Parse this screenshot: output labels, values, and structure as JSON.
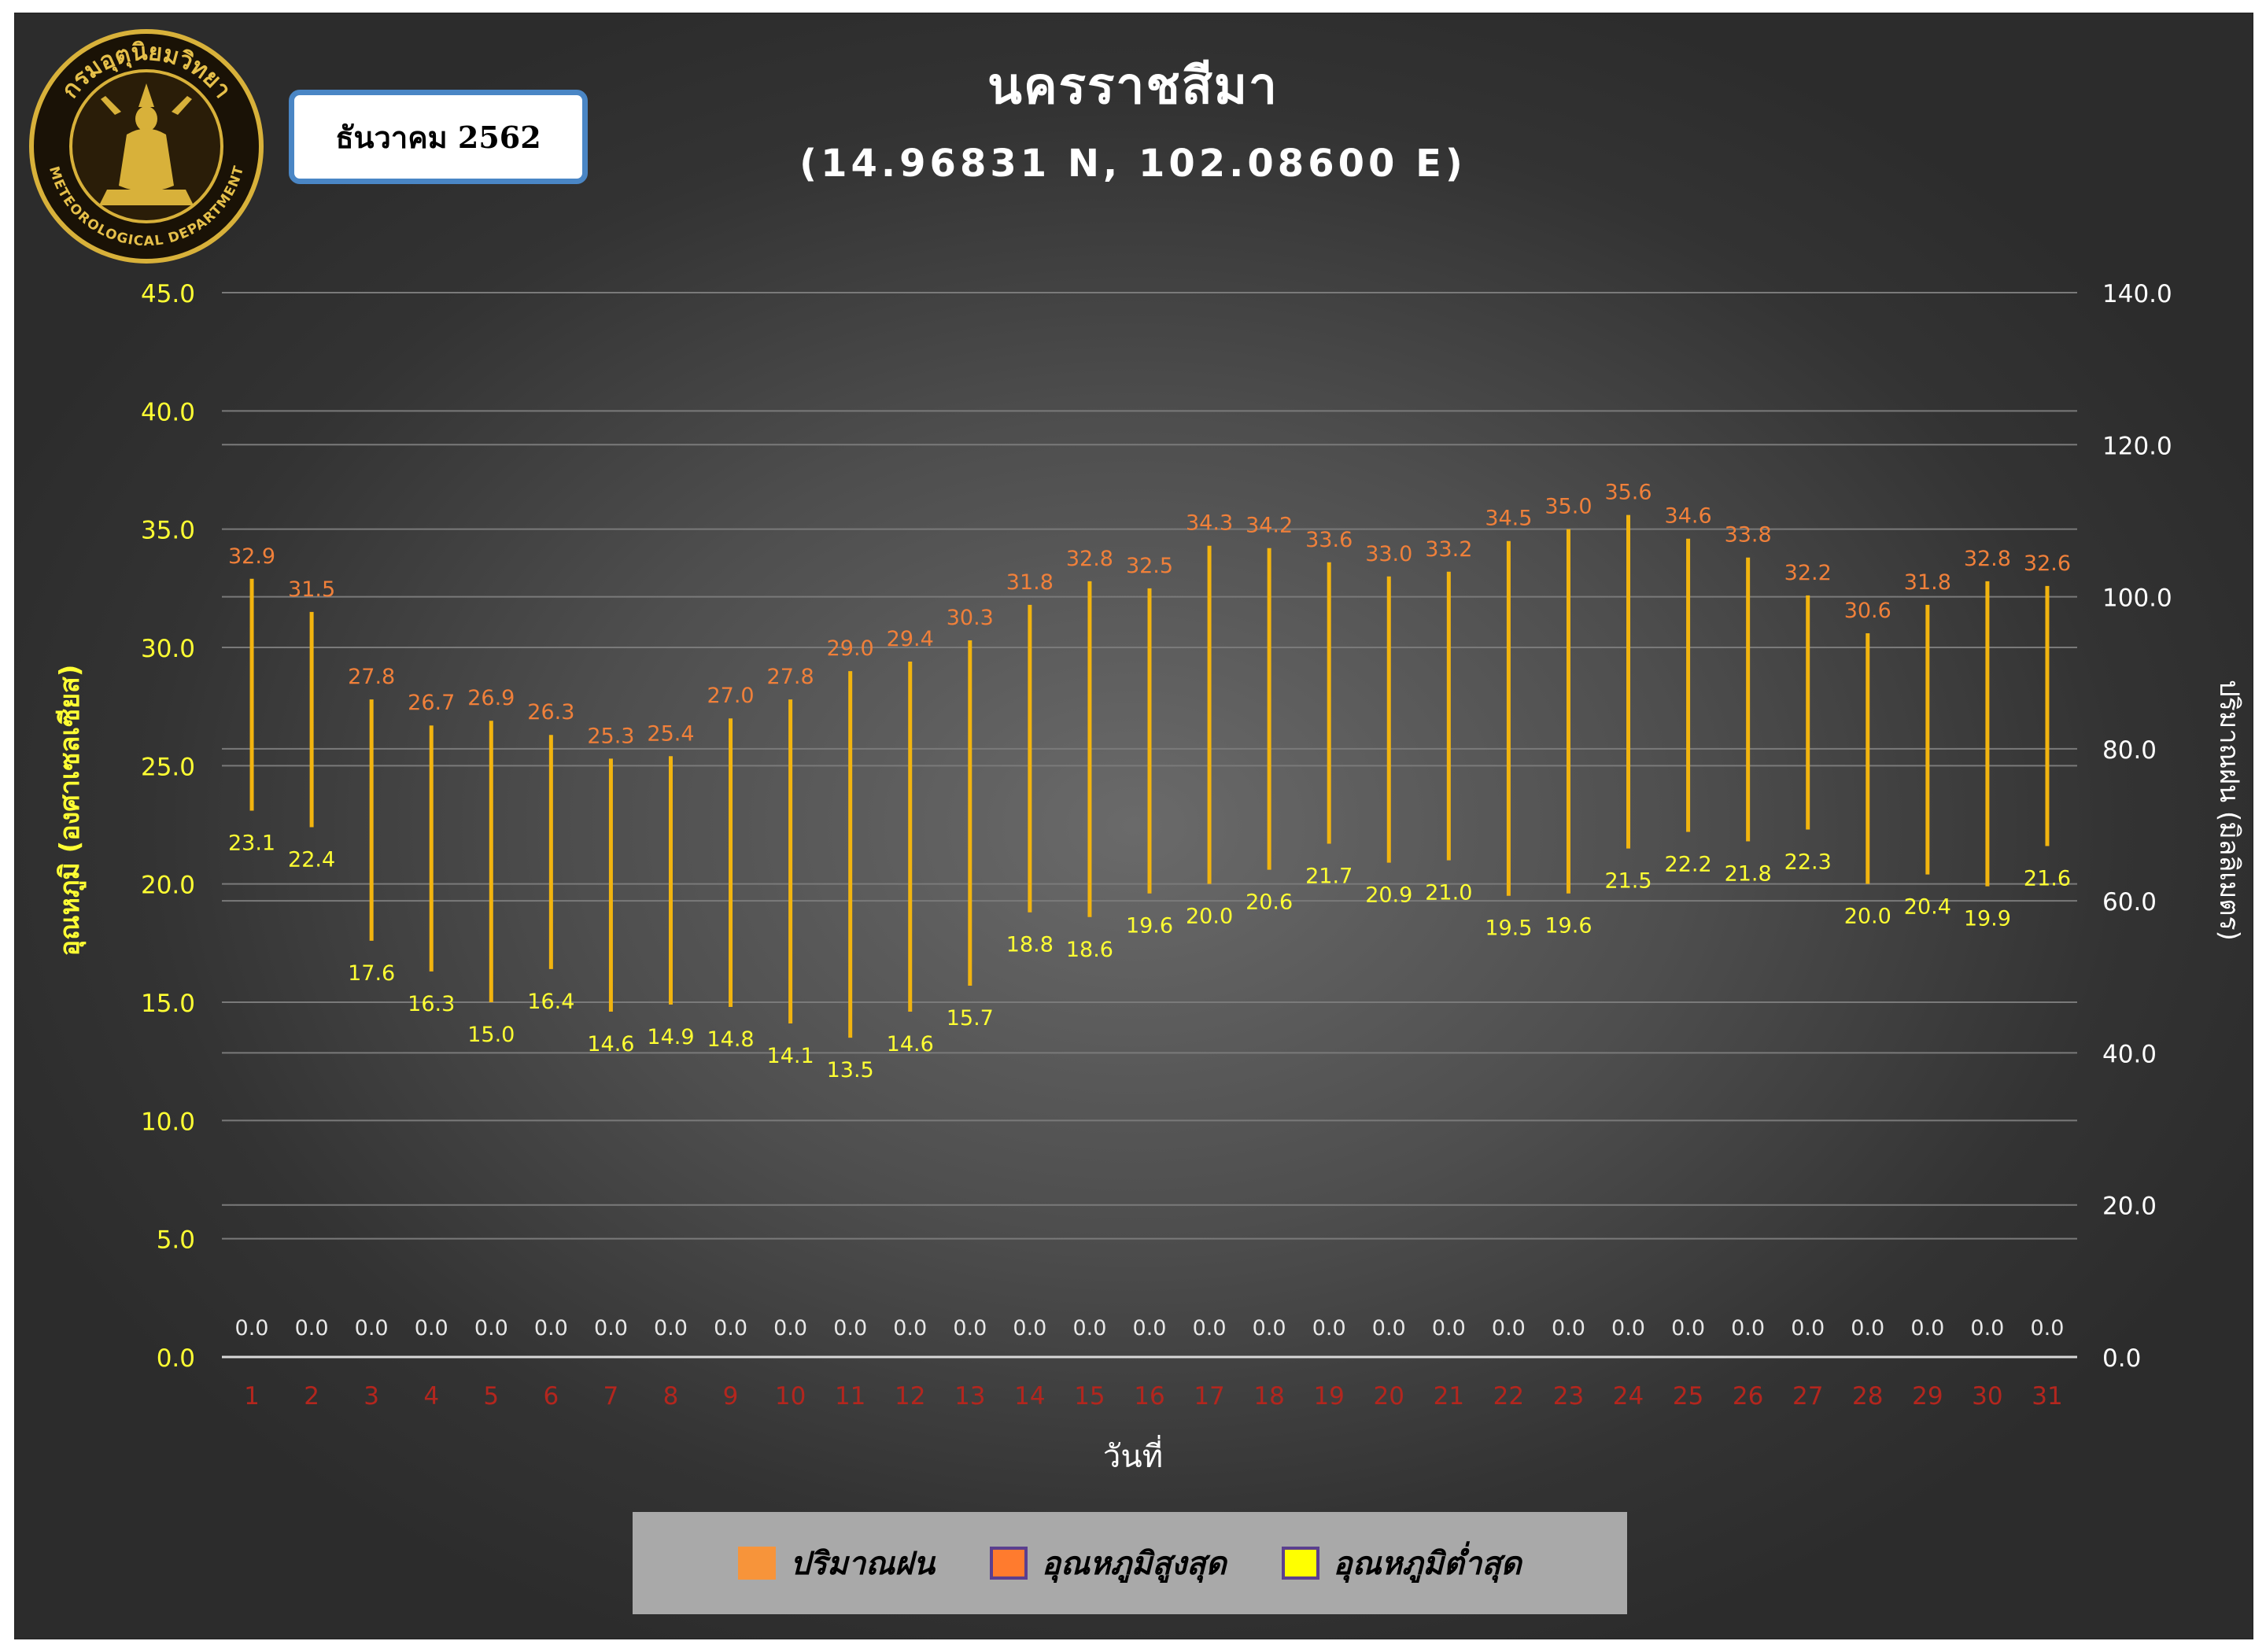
{
  "header": {
    "logo_text_top": "กรมอุตุนิยมวิทยา",
    "logo_text_bottom": "METEOROLOGICAL DEPARTMENT",
    "month_label": "ธันวาคม 2562",
    "title": "นครราชสีมา",
    "subtitle": "(14.96831 N, 102.08600 E)"
  },
  "legend": {
    "items": [
      {
        "label": "ปริมาณฝน",
        "color": "#f7943a"
      },
      {
        "label": "อุณหภูมิสูงสุด",
        "color": "#ff7b2e"
      },
      {
        "label": "อุณหภูมิต่ำสุด",
        "color": "#ffff00"
      }
    ]
  },
  "chart_data": {
    "type": "bar",
    "title": "นครราชสีมา",
    "subtitle": "(14.96831 N, 102.08600 E)",
    "xlabel": "วันที่",
    "ylabel": "อุณหภูมิ (องศาเซลเซียส)",
    "y2label": "ปริมาณฝน (มิลลิเมตร)",
    "ylim": [
      0,
      45
    ],
    "y2lim": [
      0,
      140
    ],
    "yticks": [
      "0.0",
      "5.0",
      "10.0",
      "15.0",
      "20.0",
      "25.0",
      "30.0",
      "35.0",
      "40.0",
      "45.0"
    ],
    "y2ticks": [
      "0.0",
      "20.0",
      "40.0",
      "60.0",
      "80.0",
      "100.0",
      "120.0",
      "140.0"
    ],
    "categories": [
      "1",
      "2",
      "3",
      "4",
      "5",
      "6",
      "7",
      "8",
      "9",
      "10",
      "11",
      "12",
      "13",
      "14",
      "15",
      "16",
      "17",
      "18",
      "19",
      "20",
      "21",
      "22",
      "23",
      "24",
      "25",
      "26",
      "27",
      "28",
      "29",
      "30",
      "31"
    ],
    "series": [
      {
        "name": "ปริมาณฝน",
        "axis": "right",
        "values": [
          0.0,
          0.0,
          0.0,
          0.0,
          0.0,
          0.0,
          0.0,
          0.0,
          0.0,
          0.0,
          0.0,
          0.0,
          0.0,
          0.0,
          0.0,
          0.0,
          0.0,
          0.0,
          0.0,
          0.0,
          0.0,
          0.0,
          0.0,
          0.0,
          0.0,
          0.0,
          0.0,
          0.0,
          0.0,
          0.0,
          0.0
        ]
      },
      {
        "name": "อุณหภูมิสูงสุด",
        "axis": "left",
        "values": [
          32.9,
          31.5,
          27.8,
          26.7,
          26.9,
          26.3,
          25.3,
          25.4,
          27.0,
          27.8,
          29.0,
          29.4,
          30.3,
          31.8,
          32.8,
          32.5,
          34.3,
          34.2,
          33.6,
          33.0,
          33.2,
          34.5,
          35.0,
          35.6,
          34.6,
          33.8,
          32.2,
          30.6,
          31.8,
          32.8,
          32.6
        ]
      },
      {
        "name": "อุณหภูมิต่ำสุด",
        "axis": "left",
        "values": [
          23.1,
          22.4,
          17.6,
          16.3,
          15.0,
          16.4,
          14.6,
          14.9,
          14.8,
          14.1,
          13.5,
          14.6,
          15.7,
          18.8,
          18.6,
          19.6,
          20.0,
          20.6,
          21.7,
          20.9,
          21.0,
          19.5,
          19.6,
          21.5,
          22.2,
          21.8,
          22.3,
          20.0,
          20.4,
          19.9,
          21.6
        ]
      }
    ],
    "colors": {
      "range_bar": "#f2b40f",
      "max_label": "#f0803a",
      "min_label": "#ffff33",
      "rain_label": "#e8e8e8",
      "left_axis_label": "#ffff33",
      "right_axis_label": "#ffffff",
      "x_tick_label": "#b3261e",
      "grid": "#7a7a7a"
    },
    "grid": true,
    "legend_position": "bottom"
  }
}
